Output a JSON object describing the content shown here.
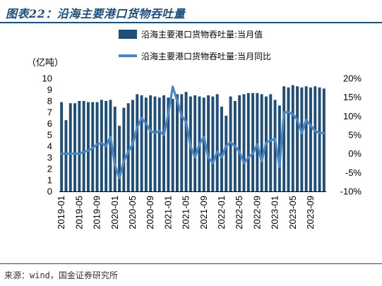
{
  "figure": {
    "title": "图表22：沿海主要港口货物吞吐量",
    "source": "来源：wind，国金证券研究所"
  },
  "colors": {
    "bar": "#1f4e79",
    "line": "#4a86c5",
    "title": "#1f4e79"
  },
  "chart_data": {
    "type": "bar",
    "left_unit": "（亿吨）",
    "x_tick_labels": [
      "2019-01",
      "2019-05",
      "2019-09",
      "2020-01",
      "2020-05",
      "2020-09",
      "2021-01",
      "2021-05",
      "2021-09",
      "2022-01",
      "2022-05",
      "2022-09",
      "2023-01",
      "2023-05",
      "2023-09"
    ],
    "y_left": {
      "min": 0,
      "max": 10,
      "ticks": [
        "0",
        "1",
        "2",
        "3",
        "4",
        "5",
        "6",
        "7",
        "8",
        "9",
        "10"
      ]
    },
    "y_right": {
      "min": -10,
      "max": 20,
      "ticks": [
        "-10%",
        "-5%",
        "0%",
        "5%",
        "10%",
        "15%",
        "20%"
      ]
    },
    "legend_position": "top-right",
    "months": [
      "2019-01",
      "2019-02",
      "2019-03",
      "2019-04",
      "2019-05",
      "2019-06",
      "2019-07",
      "2019-08",
      "2019-09",
      "2019-10",
      "2019-11",
      "2019-12",
      "2020-01",
      "2020-02",
      "2020-03",
      "2020-04",
      "2020-05",
      "2020-06",
      "2020-07",
      "2020-08",
      "2020-09",
      "2020-10",
      "2020-11",
      "2020-12",
      "2021-01",
      "2021-02",
      "2021-03",
      "2021-04",
      "2021-05",
      "2021-06",
      "2021-07",
      "2021-08",
      "2021-09",
      "2021-10",
      "2021-11",
      "2021-12",
      "2022-01",
      "2022-02",
      "2022-03",
      "2022-04",
      "2022-05",
      "2022-06",
      "2022-07",
      "2022-08",
      "2022-09",
      "2022-10",
      "2022-11",
      "2022-12",
      "2023-01",
      "2023-02",
      "2023-03",
      "2023-04",
      "2023-05",
      "2023-06",
      "2023-07",
      "2023-08",
      "2023-09",
      "2023-10",
      "2023-11",
      "2023-12"
    ],
    "series": [
      {
        "name": "沿海主要港口货物吞吐量:当月值",
        "axis": "left",
        "kind": "bar",
        "values": [
          7.9,
          6.3,
          7.8,
          7.8,
          8.0,
          8.0,
          7.9,
          7.9,
          7.9,
          8.1,
          8.0,
          8.1,
          7.5,
          5.8,
          7.4,
          7.8,
          8.1,
          8.6,
          8.5,
          8.3,
          8.5,
          8.4,
          8.3,
          8.5,
          8.3,
          8.2,
          8.6,
          8.6,
          8.8,
          8.4,
          8.5,
          8.4,
          8.3,
          8.5,
          8.4,
          8.6,
          7.5,
          6.7,
          8.4,
          8.0,
          8.5,
          8.6,
          8.7,
          8.7,
          8.7,
          8.6,
          8.4,
          8.6,
          8.1,
          7.6,
          9.3,
          9.2,
          9.4,
          9.3,
          9.2,
          9.3,
          9.2,
          9.3,
          9.2,
          9.1
        ]
      },
      {
        "name": "沿海主要港口货物吞吐量:当月同比",
        "axis": "right",
        "kind": "line",
        "values": [
          0.0,
          0.0,
          0.0,
          0.0,
          0.0,
          0.5,
          0.8,
          1.5,
          2.5,
          2.8,
          2.0,
          4.5,
          -3.0,
          -6.5,
          -2.0,
          0.5,
          2.5,
          7.0,
          9.5,
          8.0,
          6.0,
          5.5,
          6.0,
          5.0,
          10.5,
          17.8,
          14.0,
          10.0,
          8.5,
          2.0,
          -1.0,
          2.5,
          4.5,
          -1.0,
          -2.5,
          0.5,
          -1.0,
          2.0,
          3.0,
          2.0,
          0.5,
          -2.5,
          -1.0,
          0.0,
          2.5,
          -2.0,
          3.0,
          3.5,
          4.0,
          -3.5,
          11.0,
          11.0,
          10.5,
          9.0,
          5.5,
          9.0,
          7.5,
          6.0,
          5.5,
          5.5
        ]
      }
    ]
  }
}
